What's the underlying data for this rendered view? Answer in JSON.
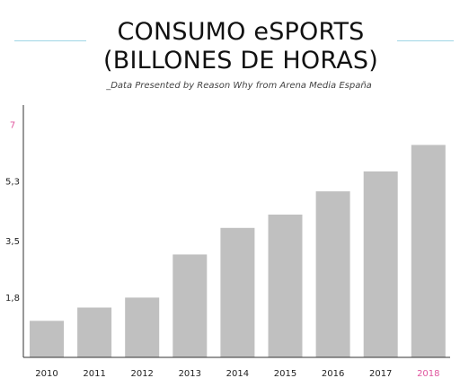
{
  "header": {
    "title_line1": "CONSUMO eSPORTS",
    "title_line2": "(BILLONES DE HORAS)",
    "subtitle": "_Data Presented by Reason Why from Arena Media España"
  },
  "colors": {
    "bar": "#c0c0c0",
    "axis": "#333333",
    "text": "#222222",
    "highlight": "#e0559e",
    "accent_line": "#9fd6e6"
  },
  "chart_data": {
    "type": "bar",
    "title": "CONSUMO eSPORTS (BILLONES DE HORAS)",
    "subtitle": "_Data Presented by Reason Why from Arena Media España",
    "categories": [
      "2010",
      "2011",
      "2012",
      "2013",
      "2014",
      "2015",
      "2016",
      "2017",
      "2018"
    ],
    "values": [
      1.1,
      1.5,
      1.8,
      3.1,
      3.9,
      4.3,
      5.0,
      5.6,
      6.4
    ],
    "yticks": [
      {
        "value": 1.8,
        "label": "1,8",
        "highlight": false
      },
      {
        "value": 3.5,
        "label": "3,5",
        "highlight": false
      },
      {
        "value": 5.3,
        "label": "5,3",
        "highlight": false
      },
      {
        "value": 7,
        "label": "7",
        "highlight": true
      }
    ],
    "highlight_category": "2018",
    "ylim": [
      0,
      7.6
    ],
    "xlabel": "",
    "ylabel": "",
    "grid": false,
    "legend": "none"
  }
}
